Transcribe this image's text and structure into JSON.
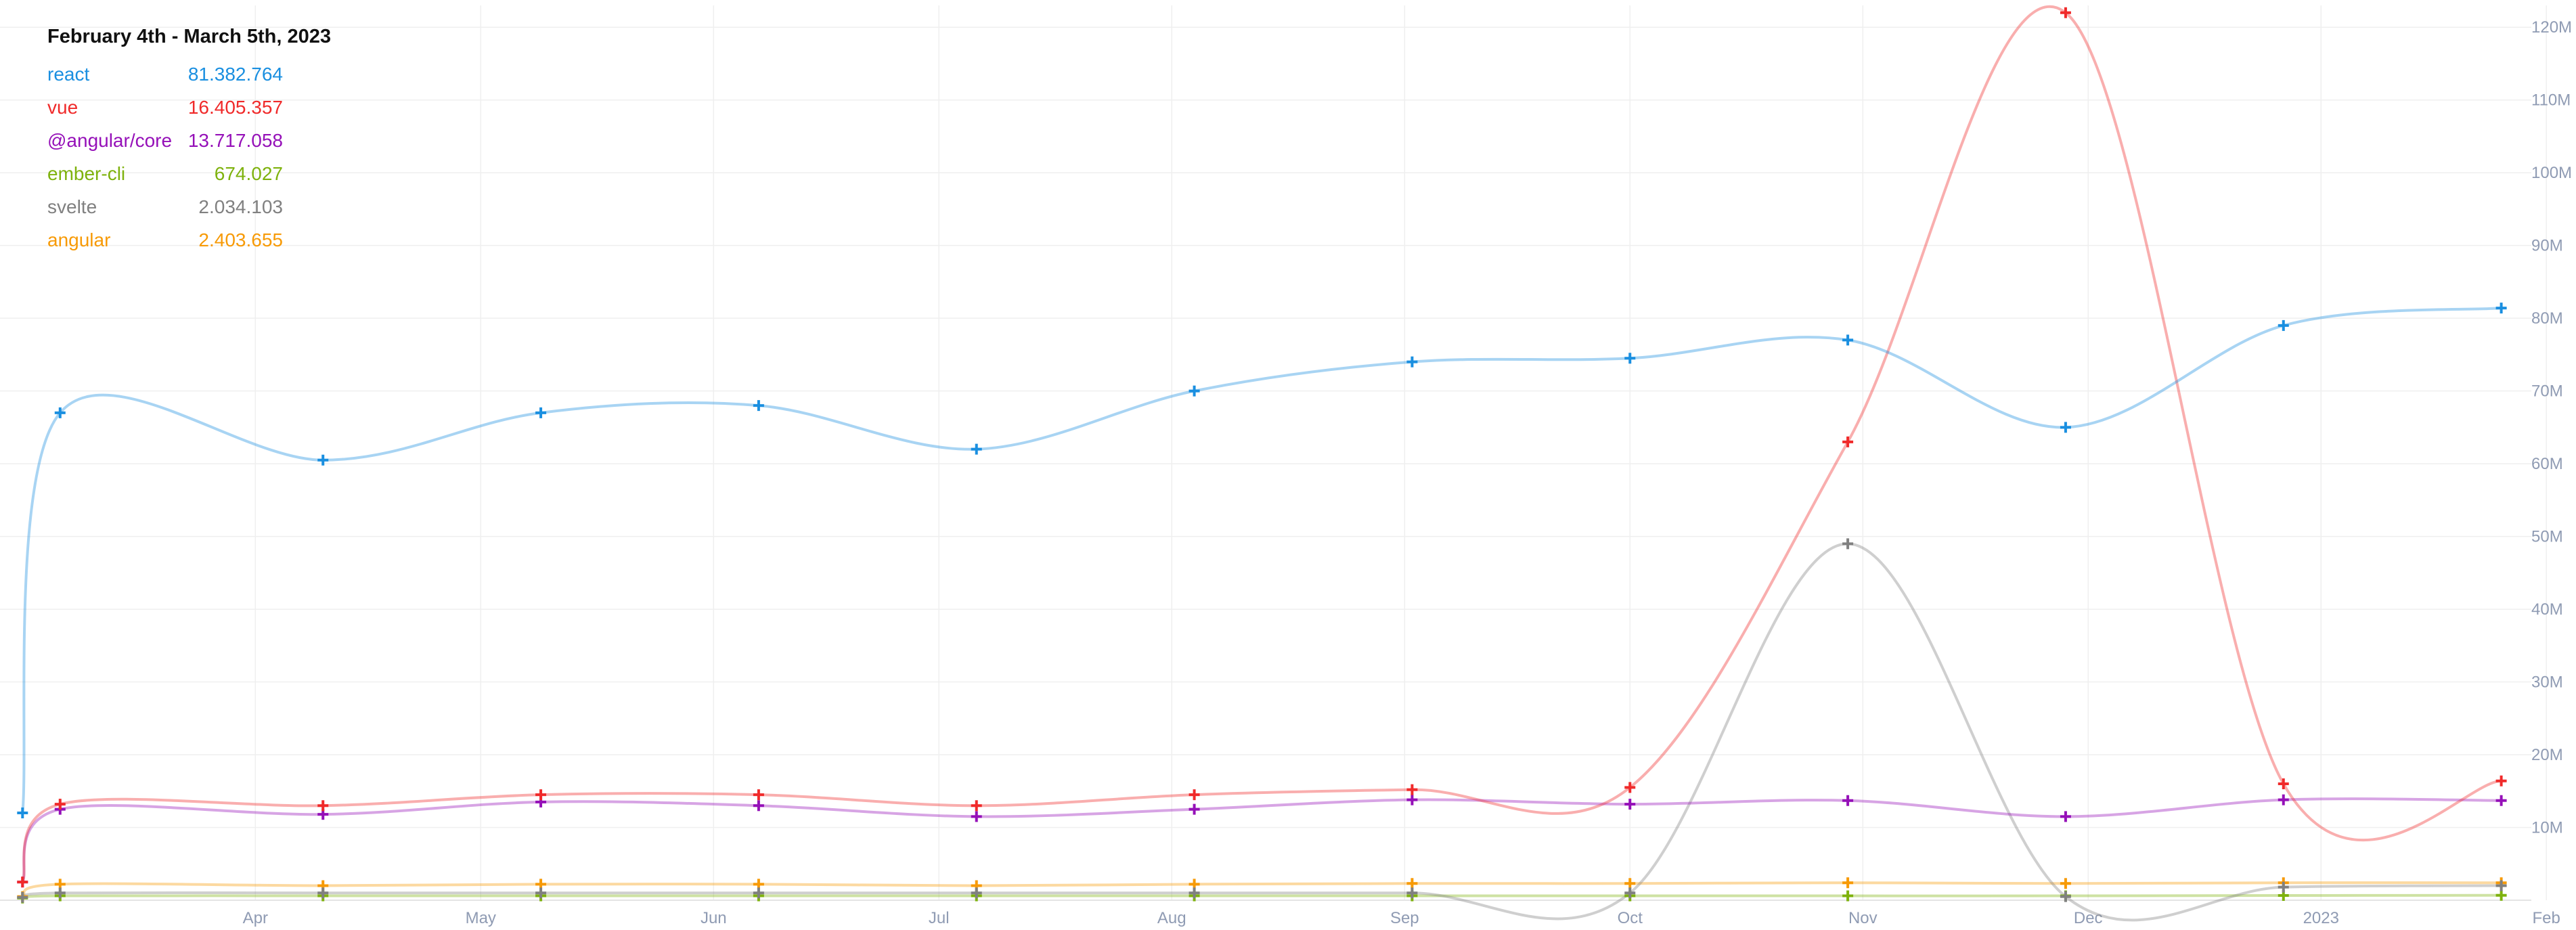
{
  "chart_data": {
    "type": "line",
    "title": "February 4th - March 5th, 2023",
    "x_ticks": [
      "Apr",
      "May",
      "Jun",
      "Jul",
      "Aug",
      "Sep",
      "Oct",
      "Nov",
      "Dec",
      "2023",
      "Feb"
    ],
    "y_ticks": [
      "10M",
      "20M",
      "30M",
      "40M",
      "50M",
      "60M",
      "70M",
      "80M",
      "90M",
      "100M",
      "110M",
      "120M"
    ],
    "ylim": [
      0,
      123
    ],
    "y_unit": "M",
    "x_dates": [
      "2022-03-01",
      "2022-03-06",
      "2022-04-10",
      "2022-05-09",
      "2022-06-07",
      "2022-07-06",
      "2022-08-04",
      "2022-09-02",
      "2022-10-01",
      "2022-10-30",
      "2022-11-28",
      "2022-12-27",
      "2023-01-25"
    ],
    "grid": true,
    "legend_position": "top-left",
    "series": [
      {
        "name": "react",
        "color": "#1a8fe0",
        "latest": "81.382.764",
        "values": [
          12,
          67,
          60.5,
          67,
          68,
          62,
          70,
          74,
          74.5,
          77,
          65,
          79,
          81.4
        ]
      },
      {
        "name": "vue",
        "color": "#f02a2a",
        "latest": "16.405.357",
        "values": [
          2.5,
          13.2,
          13,
          14.5,
          14.5,
          13,
          14.5,
          15.2,
          15.5,
          63,
          122,
          16,
          16.4
        ]
      },
      {
        "name": "@angular/core",
        "color": "#9510b8",
        "latest": "13.717.058",
        "values": [
          2.5,
          12.5,
          11.8,
          13.5,
          13,
          11.5,
          12.5,
          13.8,
          13.2,
          13.7,
          11.5,
          13.8,
          13.7
        ]
      },
      {
        "name": "ember-cli",
        "color": "#7eb20d",
        "latest": "674.027",
        "values": [
          0.3,
          0.6,
          0.6,
          0.6,
          0.6,
          0.6,
          0.6,
          0.6,
          0.6,
          0.6,
          0.6,
          0.65,
          0.67
        ]
      },
      {
        "name": "svelte",
        "color": "#808080",
        "latest": "2.034.103",
        "values": [
          0.4,
          1,
          1,
          1,
          1,
          1,
          1,
          1,
          1,
          49,
          0.5,
          1.8,
          2
        ]
      },
      {
        "name": "angular",
        "color": "#f79a06",
        "latest": "2.403.655",
        "values": [
          0.5,
          2.2,
          2,
          2.2,
          2.2,
          2,
          2.2,
          2.3,
          2.3,
          2.4,
          2.3,
          2.4,
          2.4
        ]
      }
    ]
  }
}
